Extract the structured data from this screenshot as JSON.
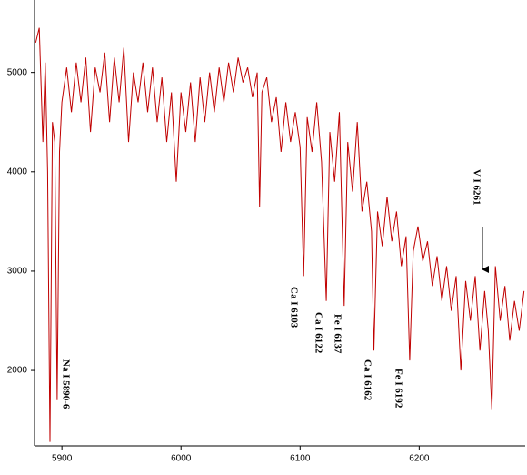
{
  "chart_data": {
    "type": "line",
    "x": [
      5878,
      5881,
      5884,
      5886,
      5888,
      5890,
      5892,
      5894,
      5896,
      5898,
      5900,
      5904,
      5908,
      5912,
      5916,
      5920,
      5924,
      5928,
      5932,
      5936,
      5940,
      5944,
      5948,
      5952,
      5956,
      5960,
      5964,
      5968,
      5972,
      5976,
      5980,
      5984,
      5988,
      5992,
      5996,
      6000,
      6004,
      6008,
      6012,
      6016,
      6020,
      6024,
      6028,
      6032,
      6036,
      6040,
      6044,
      6048,
      6052,
      6056,
      6060,
      6064,
      6066,
      6068,
      6072,
      6076,
      6080,
      6084,
      6088,
      6092,
      6096,
      6100,
      6103,
      6106,
      6110,
      6114,
      6118,
      6122,
      6125,
      6129,
      6133,
      6137,
      6140,
      6144,
      6148,
      6152,
      6156,
      6160,
      6162,
      6165,
      6169,
      6173,
      6177,
      6181,
      6185,
      6189,
      6192,
      6195,
      6199,
      6203,
      6207,
      6211,
      6215,
      6219,
      6223,
      6227,
      6231,
      6235,
      6239,
      6243,
      6247,
      6251,
      6255,
      6258,
      6261,
      6264,
      6268,
      6272,
      6276,
      6280,
      6284,
      6288
    ],
    "series": [
      {
        "color": "#c00000",
        "values": [
          5300,
          5450,
          4300,
          5100,
          4000,
          1280,
          4500,
          4300,
          1700,
          4200,
          4700,
          5050,
          4600,
          5100,
          4700,
          5150,
          4400,
          5050,
          4800,
          5200,
          4500,
          5150,
          4700,
          5250,
          4300,
          5000,
          4700,
          5100,
          4600,
          5050,
          4500,
          4950,
          4300,
          4800,
          3900,
          4800,
          4400,
          4900,
          4300,
          4950,
          4500,
          5000,
          4600,
          5050,
          4700,
          5100,
          4800,
          5150,
          4900,
          5050,
          4750,
          5000,
          3650,
          4800,
          4950,
          4500,
          4750,
          4200,
          4700,
          4300,
          4600,
          4250,
          2950,
          4550,
          4200,
          4700,
          4100,
          2700,
          4400,
          3900,
          4600,
          2650,
          4300,
          3800,
          4500,
          3600,
          3900,
          3400,
          2200,
          3600,
          3250,
          3750,
          3300,
          3600,
          3050,
          3350,
          2100,
          3200,
          3450,
          3100,
          3300,
          2850,
          3150,
          2700,
          3050,
          2600,
          2950,
          2000,
          2900,
          2500,
          2950,
          2200,
          2800,
          2400,
          1600,
          3050,
          2500,
          2850,
          2300,
          2700,
          2400,
          2800
        ]
      }
    ],
    "xlim": [
      5877,
      6289
    ],
    "ylim": [
      1240,
      5730
    ],
    "xticks": [
      5900,
      6000,
      6100,
      6200
    ],
    "yticks": [
      2000,
      3000,
      4000,
      5000
    ],
    "annotations": [
      "Na I  5890-6",
      "Ca I  6103",
      "Ca I  6122",
      "Fe I  6137",
      "Ca I  6162",
      "Fe I  6192",
      "V I  6261"
    ]
  }
}
